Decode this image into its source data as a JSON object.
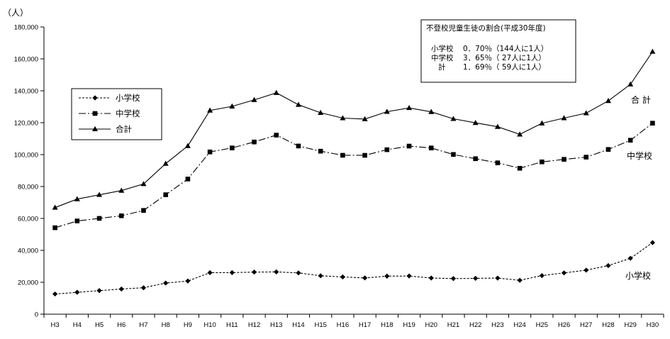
{
  "chart_data": {
    "type": "line",
    "ylabel": "（人）",
    "ylim": [
      0,
      180000
    ],
    "ytick_step": 20000,
    "yticks": [
      "0",
      "20,000",
      "40,000",
      "60,000",
      "80,000",
      "100,000",
      "120,000",
      "140,000",
      "160,000",
      "180,000"
    ],
    "categories": [
      "H3",
      "H4",
      "H5",
      "H6",
      "H7",
      "H8",
      "H9",
      "H10",
      "H11",
      "H12",
      "H13",
      "H14",
      "H15",
      "H16",
      "H17",
      "H18",
      "H19",
      "H20",
      "H21",
      "H22",
      "H23",
      "H24",
      "H25",
      "H26",
      "H27",
      "H28",
      "H29",
      "H30"
    ],
    "series": [
      {
        "key": "elementary",
        "name": "小学校",
        "end_label": "小学校",
        "marker": "diamond",
        "dash": "3,2",
        "values": [
          12645,
          13710,
          14769,
          15786,
          16569,
          19498,
          20765,
          26017,
          26047,
          26373,
          26511,
          25869,
          24077,
          23318,
          22709,
          23825,
          23927,
          22652,
          22327,
          22463,
          22622,
          21243,
          24175,
          25864,
          27583,
          30448,
          35032,
          44841
        ]
      },
      {
        "key": "junior",
        "name": "中学校",
        "end_label": "中学校",
        "marker": "square",
        "dash": "10,3,2,3",
        "values": [
          54172,
          58421,
          60039,
          61663,
          65022,
          74853,
          84701,
          101675,
          104180,
          107913,
          112211,
          105383,
          102149,
          99578,
          99546,
          103069,
          105328,
          104153,
          100105,
          97428,
          94836,
          91446,
          95442,
          97033,
          98408,
          103235,
          108999,
          119687
        ]
      },
      {
        "key": "total",
        "name": "合計",
        "end_label": "合  計",
        "marker": "triangle",
        "dash": "",
        "values": [
          66817,
          72131,
          74808,
          77449,
          81591,
          94351,
          105466,
          127692,
          130227,
          134286,
          138722,
          131252,
          126226,
          122896,
          122255,
          126894,
          129255,
          126805,
          122432,
          119891,
          117458,
          112689,
          119617,
          122897,
          125991,
          133683,
          144031,
          164528
        ]
      }
    ]
  },
  "info_box": {
    "title": "不登校児童生徒の割合(平成30年度)",
    "rows": [
      {
        "label": "小学校",
        "value": "0．70％（144人に1人）"
      },
      {
        "label": "中学校",
        "value": "3．65％（ 27人に1人）"
      },
      {
        "label": "計",
        "value": "1．69％（ 59人に1人）"
      }
    ]
  }
}
